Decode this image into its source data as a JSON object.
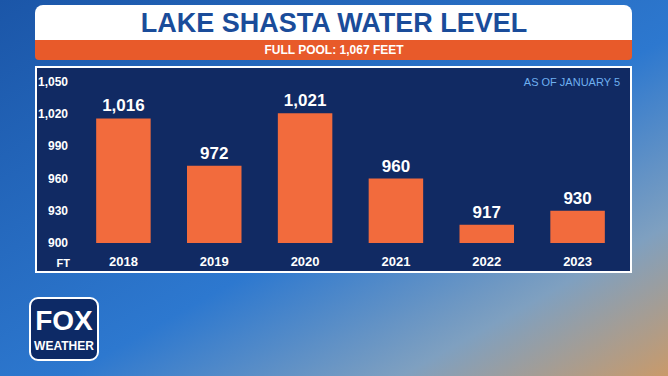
{
  "chart_data": {
    "type": "bar",
    "title": "LAKE SHASTA WATER LEVEL",
    "subtitle": "FULL POOL: 1,067 FEET",
    "annotations": [
      "AS OF JANUARY 5"
    ],
    "ylabel": "FT",
    "logo": [
      "FOX",
      "WEATHER"
    ],
    "categories": [
      "2018",
      "2019",
      "2020",
      "2021",
      "2022",
      "2023"
    ],
    "values": [
      1016,
      972,
      1021,
      960,
      917,
      930
    ],
    "value_labels": [
      "1,016",
      "972",
      "1,021",
      "960",
      "917",
      "930"
    ],
    "color": "#f26b3d",
    "ylim": [
      900,
      1050
    ],
    "yticks": [
      900,
      930,
      960,
      990,
      {
        "value": 1020,
        "label": "1,020"
      },
      {
        "value": 1050,
        "label": "1,050"
      }
    ],
    "grid": false,
    "data_labels": true
  }
}
